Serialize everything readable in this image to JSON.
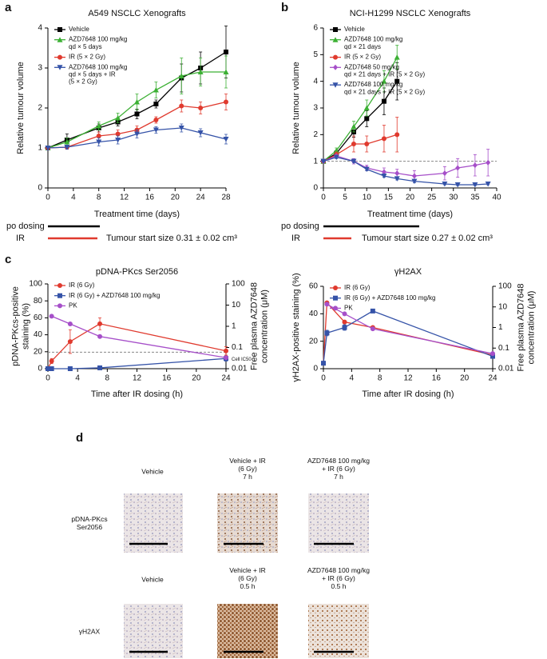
{
  "panel_labels": [
    "a",
    "b",
    "c",
    "d"
  ],
  "chart_data": [
    {
      "type": "line",
      "title": "A549 NSCLC Xenografts",
      "xlabel": "Treatment time (days)",
      "ylabel": "Relative tumour volume",
      "x": [
        0,
        3,
        8,
        11,
        14,
        17,
        21,
        24,
        28
      ],
      "xlim": [
        0,
        28
      ],
      "xticks": [
        0,
        4,
        8,
        12,
        16,
        20,
        24,
        28
      ],
      "ylim": [
        0,
        4
      ],
      "yticks": [
        0,
        1,
        2,
        3,
        4
      ],
      "legend": "upper left",
      "series": [
        {
          "name": "Vehicle",
          "color": "#000000",
          "marker": "square",
          "values": [
            1,
            1.2,
            1.5,
            1.65,
            1.85,
            2.1,
            2.75,
            3.0,
            3.4
          ],
          "errors": [
            0.05,
            0.15,
            0.1,
            0.1,
            0.12,
            0.1,
            0.35,
            0.4,
            0.65
          ]
        },
        {
          "name": "AZD7648 100 mg/kg\nqd × 5 days",
          "color": "#3cb034",
          "marker": "triangle-up",
          "values": [
            1,
            1.15,
            1.55,
            1.75,
            2.15,
            2.45,
            2.8,
            2.9,
            2.9
          ],
          "errors": [
            0.05,
            0.1,
            0.1,
            0.12,
            0.2,
            0.2,
            0.45,
            0.35,
            0.4
          ]
        },
        {
          "name": "IR (5 × 2 Gy)",
          "color": "#e03a2e",
          "marker": "circle",
          "values": [
            1,
            1.02,
            1.3,
            1.35,
            1.45,
            1.7,
            2.05,
            2.0,
            2.15
          ],
          "errors": [
            0.05,
            0.05,
            0.1,
            0.1,
            0.1,
            0.08,
            0.15,
            0.15,
            0.2
          ]
        },
        {
          "name": "AZD7648 100 mg/kg\nqd × 5 days + IR\n(5 × 2 Gy)",
          "color": "#3553a8",
          "marker": "triangle-down",
          "values": [
            1,
            1.02,
            1.15,
            1.2,
            1.35,
            1.45,
            1.5,
            1.38,
            1.22
          ],
          "errors": [
            0.05,
            0.05,
            0.1,
            0.1,
            0.1,
            0.08,
            0.1,
            0.1,
            0.12
          ]
        }
      ],
      "dosing_labels": {
        "po": "po dosing",
        "ir": "IR",
        "start_size": "Tumour start size 0.31 ± 0.02 cm³"
      }
    },
    {
      "type": "line",
      "title": "NCI-H1299 NSCLC Xenografts",
      "xlabel": "Treatment time (days)",
      "ylabel": "Relative tumour volume",
      "x": [
        0,
        3,
        7,
        10,
        14,
        17,
        21,
        28,
        31,
        35,
        38
      ],
      "xlim": [
        0,
        40
      ],
      "xticks": [
        0,
        5,
        10,
        15,
        20,
        25,
        30,
        35,
        40
      ],
      "ylim": [
        0,
        6
      ],
      "yticks": [
        0,
        1,
        2,
        3,
        4,
        5,
        6
      ],
      "legend": "upper left",
      "ref_line": {
        "value": 1,
        "axis": "y"
      },
      "series": [
        {
          "name": "Vehicle",
          "color": "#000000",
          "marker": "square",
          "values": [
            1,
            1.3,
            2.1,
            2.6,
            3.25,
            4.0,
            null,
            null,
            null,
            null,
            null
          ],
          "errors": [
            0.03,
            0.1,
            0.2,
            0.3,
            0.5,
            0.7,
            null,
            null,
            null,
            null,
            null
          ]
        },
        {
          "name": "AZD7648 100 mg/kg\nqd × 21 days",
          "color": "#3cb034",
          "marker": "triangle-up",
          "values": [
            1,
            1.4,
            2.3,
            3.0,
            4.0,
            4.9,
            null,
            null,
            null,
            null,
            null
          ],
          "errors": [
            0.03,
            0.1,
            0.2,
            0.3,
            0.4,
            0.45,
            null,
            null,
            null,
            null,
            null
          ]
        },
        {
          "name": "IR (5 × 2 Gy)",
          "color": "#e03a2e",
          "marker": "circle",
          "values": [
            1,
            1.25,
            1.65,
            1.65,
            1.85,
            2.0,
            null,
            null,
            null,
            null,
            null
          ],
          "errors": [
            0.03,
            0.1,
            0.3,
            0.3,
            0.5,
            0.65,
            null,
            null,
            null,
            null,
            null
          ]
        },
        {
          "name": "AZD7648 50 mg/kg\nqd × 21 days + IR (5 × 2 Gy)",
          "color": "#a64fc9",
          "marker": "diamond",
          "values": [
            1,
            1.2,
            1.0,
            0.75,
            0.6,
            0.55,
            0.45,
            0.55,
            0.75,
            0.85,
            0.95
          ],
          "errors": [
            0.03,
            0.05,
            0.1,
            0.1,
            0.15,
            0.15,
            0.2,
            0.25,
            0.35,
            0.4,
            0.5
          ]
        },
        {
          "name": "AZD7648 100 mg/kg\nqd × 21 days + IR (5 × 2 Gy)",
          "color": "#3553a8",
          "marker": "triangle-down",
          "values": [
            1,
            1.15,
            1.0,
            0.7,
            0.45,
            0.35,
            0.25,
            0.15,
            0.12,
            0.12,
            0.15
          ],
          "errors": [
            0.03,
            0.05,
            0.05,
            0.05,
            0.05,
            0.05,
            0.05,
            0.03,
            0.03,
            0.03,
            0.03
          ]
        }
      ],
      "dosing_labels": {
        "po": "po dosing",
        "ir": "IR",
        "start_size": "Tumour start size 0.27 ± 0.02 cm³"
      }
    },
    {
      "type": "line",
      "title": "pDNA-PKcs Ser2056",
      "xlabel": "Time after IR dosing (h)",
      "ylabel": "pDNA-PKcs-positive\nstaining (%)",
      "y2label": "Free plasma AZD7648\nconcentration (μM)",
      "x": [
        0,
        0.5,
        3,
        7,
        24
      ],
      "xlim": [
        0,
        24
      ],
      "xticks": [
        0,
        4,
        8,
        12,
        16,
        20,
        24
      ],
      "ylim": [
        0,
        100
      ],
      "yticks": [
        0,
        20,
        40,
        60,
        80,
        100
      ],
      "y2lim": [
        0.01,
        100
      ],
      "y2ticks": [
        0.01,
        0.1,
        1,
        10,
        100
      ],
      "y2log": true,
      "legend": "upper left",
      "ref_line": {
        "value": 0.06,
        "axis": "y2",
        "label": "Cell IC50"
      },
      "series": [
        {
          "name": "IR (6 Gy)",
          "color": "#e03a2e",
          "marker": "circle",
          "values": [
            0,
            9,
            32,
            53,
            21
          ],
          "errors": [
            0.5,
            3,
            14,
            7,
            5
          ]
        },
        {
          "name": "IR (6 Gy) + AZD7648 100 mg/kg",
          "color": "#3553a8",
          "marker": "square",
          "values": [
            0,
            0,
            0,
            1,
            12
          ],
          "errors": [
            0.5,
            0.5,
            0.5,
            1,
            3
          ]
        },
        {
          "name": "PK",
          "color": "#a64fc9",
          "marker": "circle",
          "axis": "y2",
          "values": [
            null,
            3,
            1.3,
            0.33,
            0.033
          ]
        }
      ]
    },
    {
      "type": "line",
      "title": "γH2AX",
      "xlabel": "Time after IR dosing (h)",
      "ylabel": "γH2AX-positive staining (%)",
      "y2label": "Free plasma AZD7648\nconcentration (μM)",
      "x": [
        0,
        0.5,
        3,
        7,
        24
      ],
      "xlim": [
        0,
        24
      ],
      "xticks": [
        0,
        4,
        8,
        12,
        16,
        20,
        24
      ],
      "ylim": [
        0,
        60
      ],
      "yticks": [
        0,
        20,
        40,
        60
      ],
      "y2lim": [
        0.01,
        100
      ],
      "y2ticks": [
        0.01,
        0.1,
        1,
        10,
        100
      ],
      "y2log": true,
      "legend": "upper left",
      "series": [
        {
          "name": "IR (6 Gy)",
          "color": "#e03a2e",
          "marker": "circle",
          "values": [
            4,
            48,
            34,
            30,
            10
          ],
          "errors": [
            0.5,
            1,
            1,
            1,
            1
          ]
        },
        {
          "name": "IR (6 Gy) + AZD7648 100 mg/kg",
          "color": "#3553a8",
          "marker": "square",
          "values": [
            4,
            26,
            30,
            42,
            9
          ],
          "errors": [
            0.5,
            2,
            2,
            1,
            1
          ]
        },
        {
          "name": "PK",
          "color": "#a64fc9",
          "marker": "circle",
          "axis": "y2",
          "values": [
            null,
            13.5,
            4.6,
            0.86,
            0.054
          ]
        }
      ]
    }
  ],
  "panel_d": {
    "row1_columns": [
      "Vehicle",
      "Vehicle + IR\n(6 Gy)\n7 h",
      "AZD7648 100 mg/kg\n+ IR (6 Gy)\n7 h"
    ],
    "row1_label": "pDNA-PKcs\nSer2056",
    "row2_columns": [
      "Vehicle",
      "Vehicle + IR\n(6 Gy)\n0.5 h",
      "AZD7648 100 mg/kg\n+ IR (6 Gy)\n0.5 h"
    ],
    "row2_label": "γH2AX"
  }
}
